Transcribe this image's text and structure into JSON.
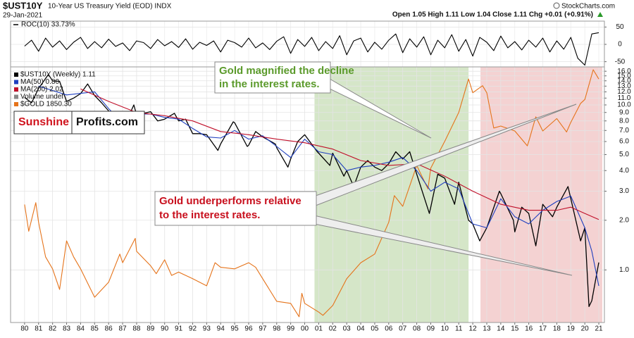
{
  "header": {
    "symbol": "$UST10Y",
    "description": "10-Year US Treasury Yield (EOD) INDX",
    "date": "29-Jan-2021",
    "quote": "Open 1.05 High 1.11 Low 1.04 Close 1.11 Chg +0.01 (+0.91%)",
    "source": "StockCharts.com"
  },
  "chart_data": [
    {
      "type": "line",
      "title": "ROC(10) 33.73%",
      "color": "#000000",
      "ylim": [
        -65,
        67
      ],
      "yticks": [
        50,
        0,
        -50
      ],
      "grid": true,
      "x": [
        1980,
        1980.5,
        1981,
        1981.5,
        1982,
        1982.5,
        1983,
        1983.5,
        1984,
        1984.5,
        1985,
        1985.5,
        1986,
        1986.5,
        1987,
        1987.5,
        1988,
        1988.5,
        1989,
        1989.5,
        1990,
        1990.5,
        1991,
        1991.5,
        1992,
        1992.5,
        1993,
        1993.5,
        1994,
        1994.5,
        1995,
        1995.5,
        1996,
        1996.5,
        1997,
        1997.5,
        1998,
        1998.5,
        1999,
        1999.5,
        2000,
        2000.5,
        2001,
        2001.5,
        2002,
        2002.5,
        2003,
        2003.5,
        2004,
        2004.5,
        2005,
        2005.5,
        2006,
        2006.5,
        2007,
        2007.5,
        2008,
        2008.5,
        2009,
        2009.5,
        2010,
        2010.5,
        2011,
        2011.5,
        2012,
        2012.5,
        2013,
        2013.5,
        2014,
        2014.5,
        2015,
        2015.5,
        2016,
        2016.5,
        2017,
        2017.5,
        2018,
        2018.5,
        2019,
        2019.5,
        2020,
        2020.5,
        2021
      ],
      "values": [
        -5,
        12,
        -20,
        18,
        -8,
        10,
        -15,
        6,
        20,
        -12,
        8,
        -10,
        15,
        -6,
        4,
        -18,
        10,
        5,
        -12,
        14,
        -4,
        8,
        -9,
        16,
        -14,
        6,
        -3,
        10,
        -22,
        12,
        5,
        -8,
        18,
        -10,
        4,
        -15,
        9,
        22,
        -26,
        14,
        -6,
        20,
        -18,
        8,
        -12,
        25,
        -30,
        10,
        18,
        -22,
        6,
        -14,
        12,
        30,
        -24,
        16,
        -8,
        22,
        -30,
        12,
        -10,
        28,
        -20,
        14,
        -34,
        20,
        6,
        -18,
        24,
        -10,
        8,
        -16,
        12,
        -8,
        18,
        -22,
        10,
        -14,
        20,
        -40,
        -60,
        30,
        33.73
      ]
    },
    {
      "type": "line",
      "log": true,
      "grid": true,
      "legend": "top-left",
      "xlim": [
        1979,
        2021.4
      ],
      "ylim": [
        0.48,
        17
      ],
      "y2lim": [
        243,
        2047
      ],
      "xticks": [
        {
          "value": 1980,
          "label": "80"
        },
        {
          "value": 1981,
          "label": "81"
        },
        {
          "value": 1982,
          "label": "82"
        },
        {
          "value": 1983,
          "label": "83"
        },
        {
          "value": 1984,
          "label": "84"
        },
        {
          "value": 1985,
          "label": "85"
        },
        {
          "value": 1986,
          "label": "86"
        },
        {
          "value": 1987,
          "label": "87"
        },
        {
          "value": 1988,
          "label": "88"
        },
        {
          "value": 1989,
          "label": "89"
        },
        {
          "value": 1990,
          "label": "90"
        },
        {
          "value": 1991,
          "label": "91"
        },
        {
          "value": 1992,
          "label": "92"
        },
        {
          "value": 1993,
          "label": "93"
        },
        {
          "value": 1994,
          "label": "94"
        },
        {
          "value": 1995,
          "label": "95"
        },
        {
          "value": 1996,
          "label": "96"
        },
        {
          "value": 1997,
          "label": "97"
        },
        {
          "value": 1998,
          "label": "98"
        },
        {
          "value": 1999,
          "label": "99"
        },
        {
          "value": 2000,
          "label": "00"
        },
        {
          "value": 2001,
          "label": "01"
        },
        {
          "value": 2002,
          "label": "02"
        },
        {
          "value": 2003,
          "label": "03"
        },
        {
          "value": 2004,
          "label": "04"
        },
        {
          "value": 2005,
          "label": "05"
        },
        {
          "value": 2006,
          "label": "06"
        },
        {
          "value": 2007,
          "label": "07"
        },
        {
          "value": 2008,
          "label": "08"
        },
        {
          "value": 2009,
          "label": "09"
        },
        {
          "value": 2010,
          "label": "10"
        },
        {
          "value": 2011,
          "label": "11"
        },
        {
          "value": 2012,
          "label": "12"
        },
        {
          "value": 2013,
          "label": "13"
        },
        {
          "value": 2014,
          "label": "14"
        },
        {
          "value": 2015,
          "label": "15"
        },
        {
          "value": 2016,
          "label": "16"
        },
        {
          "value": 2017,
          "label": "17"
        },
        {
          "value": 2018,
          "label": "18"
        },
        {
          "value": 2019,
          "label": "19"
        },
        {
          "value": 2020,
          "label": "20"
        },
        {
          "value": 2021,
          "label": "21"
        }
      ],
      "yticks": [
        {
          "value": 16,
          "label": "16.0"
        },
        {
          "value": 15,
          "label": "15.0"
        },
        {
          "value": 14,
          "label": "14.0"
        },
        {
          "value": 13,
          "label": "13.0"
        },
        {
          "value": 12,
          "label": "12.0"
        },
        {
          "value": 11,
          "label": "11.0"
        },
        {
          "value": 10,
          "label": "10.0"
        },
        {
          "value": 9,
          "label": "9.0"
        },
        {
          "value": 8,
          "label": "8.0"
        },
        {
          "value": 7,
          "label": "7.0"
        },
        {
          "value": 6,
          "label": "6.0"
        },
        {
          "value": 5,
          "label": "5.0"
        },
        {
          "value": 4,
          "label": "4.0"
        },
        {
          "value": 3,
          "label": "3.0"
        },
        {
          "value": 2,
          "label": "2.0"
        },
        {
          "value": 1,
          "label": "1.0"
        }
      ],
      "highlights": [
        {
          "x": [
            2000.7,
            2011.7
          ],
          "color": "#d5e6c8"
        },
        {
          "x": [
            2012.55,
            2021.25
          ],
          "color": "#f4d2d2"
        }
      ],
      "volume_label": "Volume undef",
      "series": [
        {
          "name": "$UST10Y (Weekly) 1.11",
          "color": "#000000",
          "x": [
            1980,
            1980.5,
            1981,
            1981.7,
            1982,
            1982.5,
            1983,
            1983.5,
            1984,
            1984.5,
            1985,
            1985.5,
            1986,
            1986.5,
            1987,
            1987.8,
            1988,
            1988.5,
            1989,
            1989.5,
            1990,
            1990.7,
            1991,
            1991.5,
            1992,
            1992.5,
            1993,
            1993.8,
            1994,
            1994.9,
            1995,
            1995.9,
            1996,
            1996.5,
            1997,
            1997.9,
            1998,
            1998.8,
            1999,
            1999.5,
            2000,
            2000.9,
            2001,
            2001.8,
            2002,
            2002.8,
            2003,
            2003.5,
            2004,
            2004.5,
            2005,
            2005.5,
            2006,
            2006.5,
            2007,
            2007.5,
            2008,
            2008.9,
            2009,
            2009.5,
            2010,
            2010.7,
            2011,
            2011.7,
            2012,
            2012.5,
            2013,
            2013.9,
            2014,
            2014.9,
            2015,
            2015.5,
            2016,
            2016.5,
            2017,
            2017.7,
            2018,
            2018.8,
            2019,
            2019.7,
            2020,
            2020.3,
            2020.5,
            2021
          ],
          "values": [
            11.1,
            10.3,
            12.6,
            15.3,
            14.0,
            13.9,
            10.5,
            11.0,
            11.7,
            13.4,
            11.4,
            10.3,
            9.2,
            7.3,
            7.1,
            10.0,
            8.7,
            8.9,
            9.1,
            8.0,
            8.2,
            8.9,
            8.0,
            8.2,
            6.7,
            6.7,
            6.6,
            5.3,
            5.8,
            7.9,
            7.8,
            5.6,
            5.7,
            6.9,
            6.4,
            5.8,
            5.5,
            4.2,
            4.7,
            6.0,
            6.6,
            5.2,
            5.1,
            4.3,
            5.1,
            3.7,
            4.0,
            3.2,
            4.2,
            4.6,
            4.2,
            4.0,
            4.4,
            5.2,
            4.7,
            5.2,
            3.8,
            2.2,
            2.4,
            3.8,
            3.6,
            2.5,
            3.4,
            2.0,
            1.9,
            1.5,
            1.8,
            3.0,
            2.9,
            2.0,
            1.7,
            2.4,
            2.2,
            1.4,
            2.5,
            2.1,
            2.4,
            3.2,
            2.7,
            1.5,
            1.8,
            0.6,
            0.65,
            1.11
          ]
        },
        {
          "name": "MA(50) 0.80",
          "color": "#1f3fbf",
          "x": [
            1981,
            1983,
            1985,
            1986,
            1987,
            1988,
            1989,
            1990,
            1991,
            1992,
            1993,
            1994,
            1995,
            1996,
            1997,
            1998,
            1999,
            2000,
            2001,
            2002,
            2003,
            2004,
            2005,
            2006,
            2007,
            2008,
            2009,
            2010,
            2011,
            2012,
            2013,
            2014,
            2015,
            2016,
            2017,
            2018,
            2019,
            2020,
            2020.5,
            2021
          ],
          "values": [
            13,
            11.5,
            12,
            9.5,
            7.8,
            8.8,
            8.8,
            8.4,
            8.2,
            7.2,
            6.4,
            6.3,
            7.0,
            6.2,
            6.5,
            5.6,
            4.8,
            6.2,
            5.2,
            5.0,
            4.0,
            4.2,
            4.3,
            4.5,
            4.8,
            4.0,
            3.0,
            3.4,
            3.1,
            1.9,
            1.8,
            2.7,
            2.1,
            1.9,
            2.3,
            2.6,
            2.8,
            1.8,
            1.3,
            0.8
          ]
        },
        {
          "name": "MA(200) 2.02",
          "color": "#c0102a",
          "x": [
            1984,
            1986,
            1988,
            1990,
            1992,
            1994,
            1996,
            1998,
            2000,
            2002,
            2004,
            2006,
            2008,
            2010,
            2012,
            2014,
            2016,
            2018,
            2019,
            2020,
            2021
          ],
          "values": [
            12.5,
            10.5,
            9.0,
            8.6,
            8.0,
            6.9,
            6.6,
            6.2,
            5.9,
            5.4,
            4.6,
            4.3,
            4.4,
            3.7,
            3.0,
            2.5,
            2.3,
            2.3,
            2.4,
            2.2,
            2.02
          ]
        },
        {
          "name": "$GOLD 1850.30",
          "color": "#e5731a",
          "axis": "y2",
          "x": [
            1980,
            1980.3,
            1980.8,
            1981,
            1981.5,
            1982,
            1982.5,
            1983,
            1983.5,
            1984,
            1985,
            1986,
            1986.8,
            1987,
            1987.9,
            1988,
            1989,
            1989.4,
            1990,
            1990.5,
            1991,
            1992,
            1993,
            1993.6,
            1994,
            1995,
            1996,
            1996.5,
            1997,
            1998,
            1999,
            1999.6,
            1999.8,
            2000,
            2001,
            2001.3,
            2002,
            2003,
            2004,
            2005,
            2006,
            2006.4,
            2007,
            2008,
            2008.8,
            2009,
            2010,
            2011,
            2011.7,
            2012,
            2012.7,
            2013,
            2013.5,
            2014,
            2015,
            2015.9,
            2016,
            2016.5,
            2017,
            2018,
            2018.7,
            2019,
            2019.7,
            2020,
            2020.6,
            2021
          ],
          "values": [
            650,
            520,
            660,
            560,
            420,
            380,
            320,
            480,
            420,
            380,
            300,
            340,
            430,
            400,
            490,
            440,
            390,
            365,
            410,
            360,
            370,
            350,
            330,
            400,
            385,
            380,
            400,
            385,
            350,
            290,
            285,
            255,
            310,
            285,
            265,
            258,
            280,
            350,
            400,
            430,
            560,
            700,
            640,
            900,
            740,
            880,
            1100,
            1400,
            1850,
            1650,
            1750,
            1650,
            1230,
            1250,
            1200,
            1060,
            1100,
            1350,
            1200,
            1330,
            1190,
            1290,
            1510,
            1560,
            2000,
            1850.3
          ]
        }
      ]
    }
  ],
  "annotations": {
    "green": [
      "Gold magnified the decline",
      "in the interest rates."
    ],
    "red": [
      "Gold underperforms relative",
      "to the interest rates."
    ],
    "logo": [
      "Sunshine",
      "Profits.com"
    ]
  }
}
